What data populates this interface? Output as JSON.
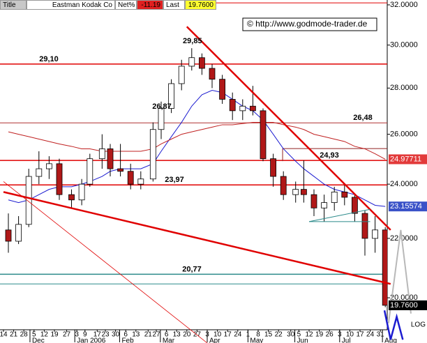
{
  "header": {
    "title": "Title",
    "name": "Eastman Kodak Co",
    "net_label": "Net%",
    "net": "-11.19",
    "last_label": "Last",
    "last": "19.7600"
  },
  "chart_data": {
    "type": "candlestick",
    "log": true,
    "scale_label": "LOG",
    "annotation_text": "© http://www.godmode-trader.de",
    "x": [
      "2005-11-14",
      "2005-11-21",
      "2005-11-28",
      "2005-12-05",
      "2005-12-12",
      "2005-12-19",
      "2005-12-27",
      "2006-01-03",
      "2006-01-09",
      "2006-01-17",
      "2006-01-23",
      "2006-01-30",
      "2006-02-06",
      "2006-02-13",
      "2006-02-21",
      "2006-02-27",
      "2006-03-06",
      "2006-03-13",
      "2006-03-20",
      "2006-03-27",
      "2006-04-03",
      "2006-04-10",
      "2006-04-17",
      "2006-04-24",
      "2006-05-01",
      "2006-05-08",
      "2006-05-15",
      "2006-05-22",
      "2006-05-30",
      "2006-06-05",
      "2006-06-12",
      "2006-06-19",
      "2006-06-26",
      "2006-07-03",
      "2006-07-10",
      "2006-07-17",
      "2006-07-24",
      "2006-07-31"
    ],
    "ohlc": {
      "open": [
        22.3,
        21.9,
        22.5,
        24.3,
        24.6,
        24.8,
        23.6,
        23.4,
        24.0,
        25.0,
        25.4,
        24.6,
        24.5,
        24.0,
        24.2,
        26.2,
        27.1,
        28.2,
        29.0,
        29.4,
        28.9,
        28.4,
        27.5,
        27.0,
        27.2,
        27.0,
        25.0,
        24.3,
        23.6,
        23.8,
        23.6,
        23.1,
        23.3,
        23.7,
        23.5,
        22.9,
        22.0,
        22.3
      ],
      "high": [
        22.9,
        22.8,
        24.6,
        25.3,
        25.1,
        25.0,
        23.8,
        24.2,
        25.2,
        26.0,
        25.6,
        25.6,
        24.8,
        24.5,
        26.5,
        27.4,
        28.4,
        29.3,
        29.85,
        29.6,
        29.1,
        28.6,
        27.8,
        27.5,
        28.1,
        27.1,
        25.2,
        24.5,
        24.1,
        24.93,
        23.8,
        23.6,
        23.9,
        24.0,
        23.6,
        23.0,
        22.8,
        22.4
      ],
      "low": [
        21.5,
        21.8,
        22.4,
        24.0,
        24.2,
        23.4,
        23.1,
        23.2,
        23.9,
        24.6,
        24.3,
        24.3,
        23.8,
        23.8,
        24.1,
        25.8,
        26.9,
        27.9,
        28.8,
        28.6,
        28.0,
        27.3,
        26.6,
        26.6,
        26.8,
        24.9,
        23.9,
        23.4,
        23.3,
        23.3,
        22.8,
        22.6,
        23.0,
        23.2,
        22.6,
        21.4,
        21.5,
        19.7
      ],
      "close": [
        21.9,
        22.5,
        24.3,
        24.6,
        24.8,
        23.6,
        23.4,
        24.0,
        25.0,
        25.4,
        24.6,
        24.5,
        24.0,
        24.2,
        26.2,
        27.1,
        28.2,
        29.0,
        29.4,
        28.9,
        28.4,
        27.5,
        27.0,
        27.2,
        27.0,
        25.0,
        24.3,
        23.6,
        23.8,
        23.6,
        23.1,
        23.3,
        23.7,
        23.5,
        22.9,
        22.0,
        22.3,
        19.76
      ]
    },
    "moving_averages": [
      {
        "color": "#1c1cd0",
        "values": [
          23.4,
          23.3,
          23.4,
          23.6,
          23.8,
          23.9,
          23.9,
          24.0,
          24.1,
          24.3,
          24.5,
          24.6,
          24.6,
          24.6,
          24.8,
          25.3,
          25.9,
          26.5,
          27.2,
          27.7,
          27.9,
          27.8,
          27.5,
          27.2,
          27.0,
          26.6,
          26.0,
          25.4,
          24.9,
          24.6,
          24.3,
          24.0,
          23.8,
          23.7,
          23.6,
          23.4,
          23.2,
          23.15574
        ]
      },
      {
        "color": "#c02020",
        "values": [
          26.1,
          26.0,
          25.9,
          25.8,
          25.7,
          25.6,
          25.5,
          25.4,
          25.4,
          25.3,
          25.3,
          25.3,
          25.3,
          25.3,
          25.4,
          25.6,
          25.8,
          26.0,
          26.1,
          26.2,
          26.3,
          26.4,
          26.4,
          26.45,
          26.5,
          26.5,
          26.5,
          26.4,
          26.3,
          26.2,
          26.0,
          25.9,
          25.8,
          25.7,
          25.5,
          25.4,
          25.2,
          24.97711
        ]
      }
    ],
    "price_tags": [
      {
        "value": 24.97711,
        "label": "24.97711",
        "color": "#e23a3a"
      },
      {
        "value": 23.15574,
        "label": "23.15574",
        "color": "#3a52c8"
      },
      {
        "value": 19.76,
        "label": "19.7600",
        "color": "#000000"
      }
    ],
    "levels": [
      {
        "value": 32.1,
        "color": "#e00000"
      },
      {
        "value": 29.1,
        "label": "29,10",
        "color": "#e00000"
      },
      {
        "value": 26.48,
        "label": "26,48",
        "color": "#b03030"
      },
      {
        "value": 24.93,
        "label": "24,93",
        "color": "#e00000"
      },
      {
        "value": 25.41,
        "color": "#902020",
        "start": "2006-05-24"
      },
      {
        "value": 23.97,
        "label": "23,97",
        "color": "#e00000"
      },
      {
        "value": 20.77,
        "label": "20,77",
        "color": "#2a8a8a"
      },
      {
        "value": 20.45,
        "color": "#2a8a8a"
      }
    ],
    "annotations": [
      {
        "x": "2006-03-20",
        "value": 29.85,
        "label": "29,85"
      },
      {
        "x": "2006-02-27",
        "value": 26.87,
        "label": "26,87"
      }
    ],
    "trendlines": [
      {
        "color": "#e00000",
        "width": 2.5,
        "x": [
          "2006-03-20",
          "2006-08-07"
        ],
        "y": [
          30.9,
          22.3
        ]
      },
      {
        "color": "#e00000",
        "width": 2.5,
        "x": [
          "2005-11-14",
          "2006-08-07"
        ],
        "y": [
          23.7,
          20.45
        ]
      },
      {
        "color": "#e00000",
        "width": 0.8,
        "x": [
          "2005-11-14",
          "2006-04-03"
        ],
        "y": [
          24.1,
          18.6
        ]
      },
      {
        "color": "#2a8a8a",
        "width": 1,
        "x": [
          "2006-06-12",
          "2006-07-24"
        ],
        "y": [
          22.6,
          23.05
        ]
      },
      {
        "color": "#2a8a8a",
        "width": 1,
        "x": [
          "2006-06-12",
          "2006-07-24"
        ],
        "y": [
          22.6,
          22.6
        ]
      },
      {
        "color": "#b8b8b8",
        "width": 2,
        "x": [
          "2006-08-04",
          "2006-08-14",
          "2006-08-21"
        ],
        "y": [
          19.2,
          22.3,
          19.5
        ]
      },
      {
        "color": "#1c1cd0",
        "width": 2.5,
        "x": [
          "2006-08-02",
          "2006-08-07",
          "2006-08-10",
          "2006-08-15"
        ],
        "y": [
          19.6,
          18.7,
          19.4,
          18.7
        ]
      }
    ],
    "ylim": [
      19,
      32.25
    ],
    "yticks": [
      {
        "value": 32,
        "label": "32.0000"
      },
      {
        "value": 30,
        "label": "30.0000"
      },
      {
        "value": 28,
        "label": "28.0000"
      },
      {
        "value": 26,
        "label": "26.0000"
      },
      {
        "value": 24,
        "label": "24.0000"
      },
      {
        "value": 22,
        "label": "22.0000"
      },
      {
        "value": 20,
        "label": "20.0000"
      }
    ],
    "xticks": [
      {
        "value": "2005-11-14",
        "label": "14"
      },
      {
        "value": "2005-11-21",
        "label": "21"
      },
      {
        "value": "2005-11-28",
        "label": "28"
      },
      {
        "value": "2005-12-05",
        "label": "5"
      },
      {
        "value": "2005-12-12",
        "label": "12"
      },
      {
        "value": "2005-12-19",
        "label": "19"
      },
      {
        "value": "2005-12-27",
        "label": "27"
      },
      {
        "value": "2006-01-03",
        "label": "3"
      },
      {
        "value": "2006-01-09",
        "label": "9"
      },
      {
        "value": "2006-01-17",
        "label": "17"
      },
      {
        "value": "2006-01-23",
        "label": "23"
      },
      {
        "value": "2006-01-30",
        "label": "30"
      },
      {
        "value": "2006-02-06",
        "label": "6"
      },
      {
        "value": "2006-02-13",
        "label": "13"
      },
      {
        "value": "2006-02-21",
        "label": "21"
      },
      {
        "value": "2006-02-27",
        "label": "27"
      },
      {
        "value": "2006-03-06",
        "label": "6"
      },
      {
        "value": "2006-03-13",
        "label": "13"
      },
      {
        "value": "2006-03-20",
        "label": "20"
      },
      {
        "value": "2006-03-27",
        "label": "27"
      },
      {
        "value": "2006-04-03",
        "label": "3"
      },
      {
        "value": "2006-04-10",
        "label": "10"
      },
      {
        "value": "2006-04-17",
        "label": "17"
      },
      {
        "value": "2006-04-24",
        "label": "24"
      },
      {
        "value": "2006-05-01",
        "label": "1"
      },
      {
        "value": "2006-05-08",
        "label": "8"
      },
      {
        "value": "2006-05-15",
        "label": "15"
      },
      {
        "value": "2006-05-22",
        "label": "22"
      },
      {
        "value": "2006-05-30",
        "label": "30"
      },
      {
        "value": "2006-06-05",
        "label": "5"
      },
      {
        "value": "2006-06-12",
        "label": "12"
      },
      {
        "value": "2006-06-19",
        "label": "19"
      },
      {
        "value": "2006-06-26",
        "label": "26"
      },
      {
        "value": "2006-07-03",
        "label": "3"
      },
      {
        "value": "2006-07-10",
        "label": "10"
      },
      {
        "value": "2006-07-17",
        "label": "17"
      },
      {
        "value": "2006-07-24",
        "label": "24"
      },
      {
        "value": "2006-07-31",
        "label": "31"
      }
    ],
    "month_ticks": [
      {
        "value": "2005-12-01",
        "label": "Dec"
      },
      {
        "value": "2006-01-01",
        "label": "Jan 2006"
      },
      {
        "value": "2006-02-01",
        "label": "Feb"
      },
      {
        "value": "2006-03-01",
        "label": "Mar"
      },
      {
        "value": "2006-04-01",
        "label": "Apr"
      },
      {
        "value": "2006-05-01",
        "label": "May"
      },
      {
        "value": "2006-06-01",
        "label": "Jun"
      },
      {
        "value": "2006-07-01",
        "label": "Jul"
      },
      {
        "value": "2006-08-01",
        "label": "Aug"
      }
    ]
  }
}
